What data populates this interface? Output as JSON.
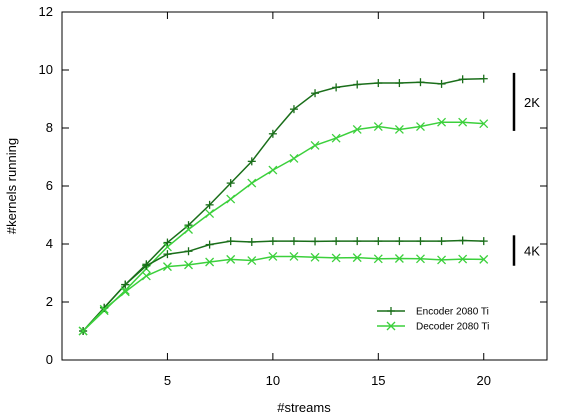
{
  "chart_data": {
    "type": "line",
    "xlabel": "#streams",
    "ylabel": "#kernels running",
    "xlim": [
      0,
      23
    ],
    "ylim": [
      0,
      12
    ],
    "xticks": [
      5,
      10,
      15,
      20
    ],
    "yticks": [
      0,
      2,
      4,
      6,
      8,
      10,
      12
    ],
    "grid": false,
    "legend_position": "bottom-right",
    "x": [
      1,
      2,
      3,
      4,
      5,
      6,
      7,
      8,
      9,
      10,
      11,
      12,
      13,
      14,
      15,
      16,
      17,
      18,
      19,
      20
    ],
    "series": [
      {
        "name": "Encoder 2080 Ti",
        "color": "#1a6e1a",
        "marker": "plus",
        "group": "2K",
        "values": [
          1.0,
          1.8,
          2.6,
          3.3,
          4.05,
          4.65,
          5.35,
          6.1,
          6.85,
          7.8,
          8.65,
          9.2,
          9.4,
          9.5,
          9.55,
          9.55,
          9.58,
          9.52,
          9.68,
          9.7
        ]
      },
      {
        "name": "Decoder 2080 Ti",
        "color": "#3cd03c",
        "marker": "x",
        "group": "2K",
        "values": [
          1.0,
          1.7,
          2.4,
          3.15,
          3.9,
          4.5,
          5.05,
          5.55,
          6.1,
          6.55,
          6.95,
          7.4,
          7.65,
          7.95,
          8.05,
          7.95,
          8.05,
          8.2,
          8.2,
          8.15
        ]
      },
      {
        "name": "Encoder 2080 Ti",
        "color": "#1a6e1a",
        "marker": "plus",
        "group": "4K",
        "values": [
          1.0,
          1.8,
          2.6,
          3.25,
          3.65,
          3.75,
          3.98,
          4.1,
          4.07,
          4.1,
          4.1,
          4.09,
          4.1,
          4.1,
          4.1,
          4.1,
          4.1,
          4.1,
          4.12,
          4.1
        ]
      },
      {
        "name": "Decoder 2080 Ti",
        "color": "#3cd03c",
        "marker": "x",
        "group": "4K",
        "values": [
          1.0,
          1.75,
          2.35,
          2.9,
          3.22,
          3.28,
          3.38,
          3.47,
          3.43,
          3.57,
          3.57,
          3.54,
          3.52,
          3.53,
          3.49,
          3.5,
          3.49,
          3.45,
          3.48,
          3.47
        ]
      }
    ],
    "annotations": [
      {
        "text": "2K",
        "y_range": [
          7.9,
          9.9
        ]
      },
      {
        "text": "4K",
        "y_range": [
          3.25,
          4.3
        ]
      }
    ]
  }
}
